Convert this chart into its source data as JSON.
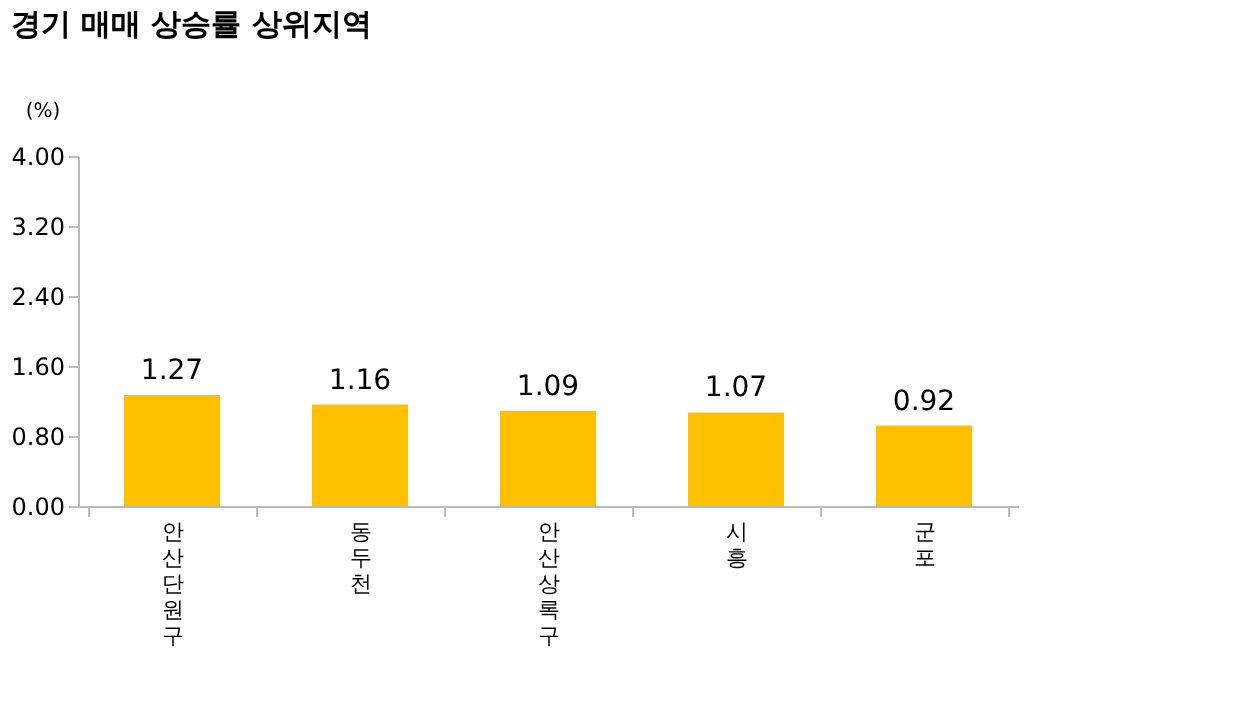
{
  "chart_data": {
    "type": "bar",
    "title": "경기 매매 상승률 상위지역",
    "ylabel": "(%)",
    "categories": [
      "안산단원구",
      "동두천",
      "안산상록구",
      "시흥",
      "군포"
    ],
    "values": [
      1.27,
      1.16,
      1.09,
      1.07,
      0.92
    ],
    "color": "#ffc000",
    "ylim": [
      0,
      4
    ],
    "yticks": [
      {
        "value": 0,
        "label": "0.00"
      },
      {
        "value": 0.8,
        "label": "0.80"
      },
      {
        "value": 1.6,
        "label": "1.60"
      },
      {
        "value": 2.4,
        "label": "2.40"
      },
      {
        "value": 3.2,
        "label": "3.20"
      },
      {
        "value": 4,
        "label": "4.00"
      }
    ],
    "data_labels": true,
    "grid": false
  }
}
